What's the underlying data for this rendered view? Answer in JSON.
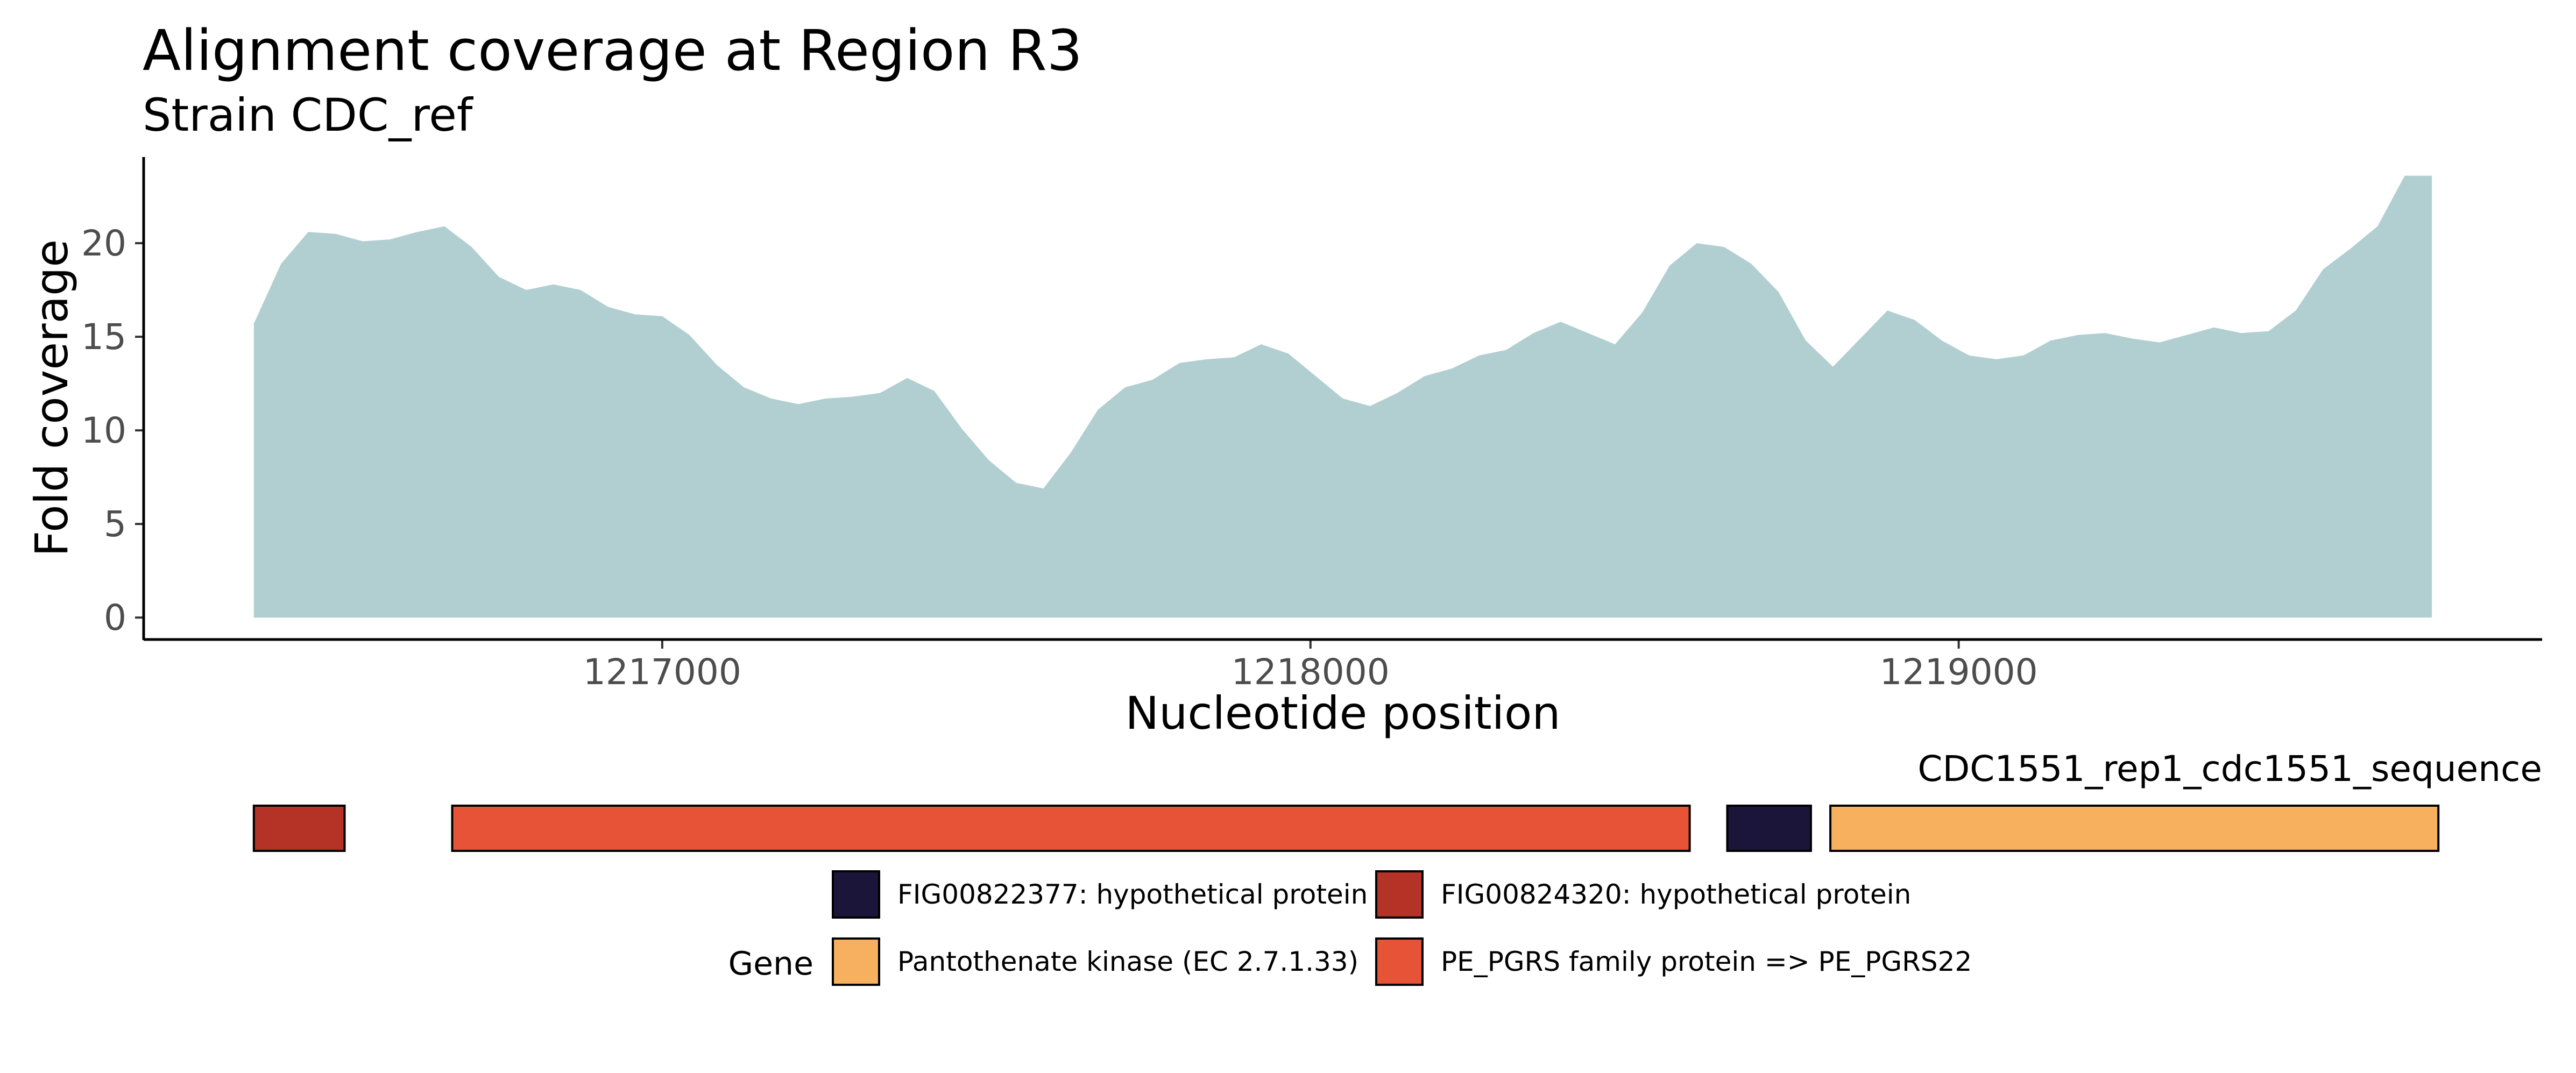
{
  "title": "Alignment coverage at Region R3",
  "subtitle": "Strain CDC_ref",
  "colors": {
    "coverage_fill": "#b1cfd1",
    "axis": "#000000",
    "tick_text": "#4d4d4d"
  },
  "chart_data": [
    {
      "type": "area",
      "title": "Alignment coverage at Region R3",
      "subtitle": "Strain CDC_ref",
      "xlabel": "Nucleotide position",
      "ylabel": "Fold coverage",
      "xlim": [
        1216200,
        1219900
      ],
      "ylim": [
        -1.2,
        24.6
      ],
      "xticks": [
        1217000,
        1218000,
        1219000
      ],
      "xtick_labels": [
        "1217000",
        "1218000",
        "1219000"
      ],
      "yticks": [
        0,
        5,
        10,
        15,
        20
      ],
      "ytick_labels": [
        "0",
        "5",
        "10",
        "15",
        "20"
      ],
      "grid": false,
      "series": [
        {
          "x": [
            1216370,
            1216412,
            1216454,
            1216496,
            1216538,
            1216580,
            1216622,
            1216664,
            1216706,
            1216748,
            1216790,
            1216832,
            1216874,
            1216916,
            1216958,
            1217000,
            1217042,
            1217084,
            1217126,
            1217168,
            1217210,
            1217252,
            1217294,
            1217336,
            1217378,
            1217420,
            1217462,
            1217504,
            1217546,
            1217588,
            1217630,
            1217672,
            1217714,
            1217756,
            1217798,
            1217840,
            1217882,
            1217924,
            1217966,
            1218008,
            1218050,
            1218092,
            1218134,
            1218176,
            1218218,
            1218260,
            1218302,
            1218344,
            1218386,
            1218428,
            1218470,
            1218512,
            1218554,
            1218596,
            1218638,
            1218680,
            1218722,
            1218764,
            1218806,
            1218848,
            1218890,
            1218932,
            1218974,
            1219016,
            1219058,
            1219100,
            1219142,
            1219184,
            1219226,
            1219268,
            1219310,
            1219352,
            1219394,
            1219436,
            1219478,
            1219520,
            1219562,
            1219604,
            1219646,
            1219688,
            1219730
          ],
          "y": [
            15.7,
            18.9,
            20.6,
            20.5,
            20.1,
            20.2,
            20.6,
            20.9,
            19.8,
            18.2,
            17.5,
            17.8,
            17.5,
            16.6,
            16.2,
            16.1,
            15.1,
            13.5,
            12.3,
            11.7,
            11.4,
            11.7,
            11.8,
            12.0,
            12.8,
            12.1,
            10.1,
            8.4,
            7.2,
            6.9,
            8.8,
            11.1,
            12.3,
            12.7,
            13.6,
            13.8,
            13.9,
            14.6,
            14.1,
            12.9,
            11.7,
            11.3,
            12.0,
            12.9,
            13.3,
            14.0,
            14.3,
            15.2,
            15.8,
            15.2,
            14.6,
            16.3,
            18.8,
            20.0,
            19.8,
            18.9,
            17.4,
            14.8,
            13.4,
            14.9,
            16.4,
            15.9,
            14.8,
            14.0,
            13.8,
            14.0,
            14.8,
            15.1,
            15.2,
            14.9,
            14.7,
            15.1,
            15.5,
            15.2,
            15.3,
            16.4,
            18.6,
            19.7,
            20.9,
            23.6,
            23.6
          ]
        }
      ]
    },
    {
      "type": "gene-track",
      "sequence_label": "CDC1551_rep1_cdc1551_sequence",
      "legend_title": "Gene",
      "genes": [
        {
          "name": "FIG00824320: hypothetical protein",
          "start": 1216370,
          "end": 1216510,
          "color": "#b53326"
        },
        {
          "name": "PE_PGRS family protein => PE_PGRS22",
          "start": 1216676,
          "end": 1218585,
          "color": "#e65337"
        },
        {
          "name": "FIG00822377: hypothetical protein",
          "start": 1218643,
          "end": 1218772,
          "color": "#1b1539"
        },
        {
          "name": "Pantothenate kinase (EC 2.7.1.33)",
          "start": 1218802,
          "end": 1219740,
          "color": "#f7b15e"
        }
      ],
      "legend": [
        {
          "label": "FIG00822377: hypothetical protein",
          "color": "#1b1539"
        },
        {
          "label": "FIG00824320: hypothetical protein",
          "color": "#b53326"
        },
        {
          "label": "Pantothenate kinase (EC 2.7.1.33)",
          "color": "#f7b15e"
        },
        {
          "label": "PE_PGRS family protein => PE_PGRS22",
          "color": "#e65337"
        }
      ]
    }
  ]
}
